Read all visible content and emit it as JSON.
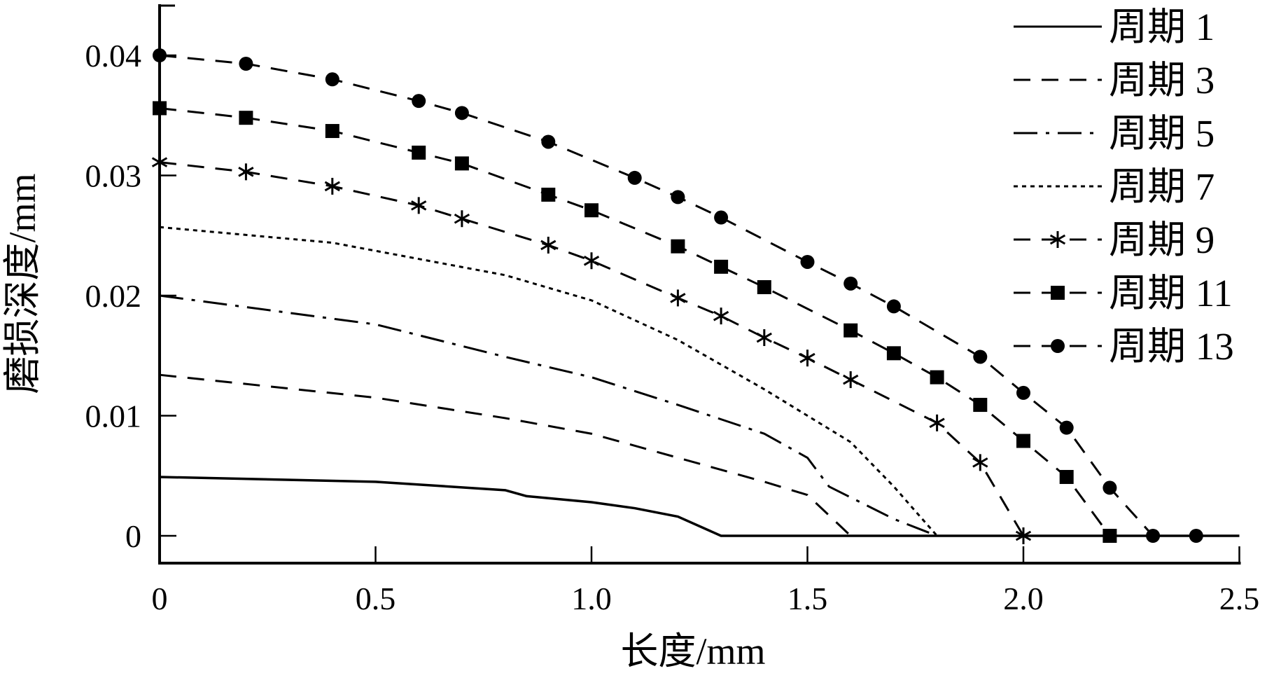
{
  "chart_data": {
    "type": "line",
    "title": "",
    "xlabel": "长度/mm",
    "ylabel": "磨损深度/mm",
    "xlim": [
      0,
      2.5
    ],
    "ylim": [
      0,
      0.045
    ],
    "xticks": [
      "0",
      "0.5",
      "1.0",
      "1.5",
      "2.0",
      "2.5"
    ],
    "xtick_values": [
      0,
      0.5,
      1.0,
      1.5,
      2.0,
      2.5
    ],
    "yticks": [
      "0",
      "0.01",
      "0.02",
      "0.03",
      "0.04"
    ],
    "ytick_values": [
      0,
      0.01,
      0.02,
      0.03,
      0.04
    ],
    "grid": false,
    "legend_position": "top-right",
    "series": [
      {
        "name": "周期 1",
        "style": "solid",
        "marker": "none",
        "x": [
          0,
          0.5,
          0.8,
          0.85,
          1.0,
          1.1,
          1.2,
          1.3,
          2.5
        ],
        "y": [
          0.0049,
          0.0045,
          0.0038,
          0.0033,
          0.0028,
          0.0023,
          0.0016,
          0,
          0
        ]
      },
      {
        "name": "周期 3",
        "style": "dashed",
        "marker": "none",
        "x": [
          0,
          0.5,
          0.8,
          1.0,
          1.2,
          1.4,
          1.5,
          1.6,
          2.5
        ],
        "y": [
          0.0134,
          0.0115,
          0.0098,
          0.0085,
          0.0065,
          0.0045,
          0.0034,
          0,
          0
        ]
      },
      {
        "name": "周期 5",
        "style": "dashdot",
        "marker": "none",
        "x": [
          0,
          0.5,
          0.8,
          1.0,
          1.2,
          1.4,
          1.5,
          1.55,
          1.7,
          1.8,
          2.5
        ],
        "y": [
          0.02,
          0.0176,
          0.0149,
          0.0132,
          0.0109,
          0.0085,
          0.0065,
          0.0041,
          0.0014,
          0,
          0
        ]
      },
      {
        "name": "周期 7",
        "style": "dotted",
        "marker": "none",
        "x": [
          0,
          0.4,
          0.8,
          1.0,
          1.2,
          1.4,
          1.6,
          1.7,
          1.8,
          2.5
        ],
        "y": [
          0.0257,
          0.0244,
          0.0217,
          0.0196,
          0.0163,
          0.0122,
          0.0078,
          0.0041,
          0,
          0
        ]
      },
      {
        "name": "周期 9",
        "style": "dashed",
        "marker": "star",
        "x": [
          0,
          0.2,
          0.4,
          0.6,
          0.7,
          0.9,
          1.0,
          1.2,
          1.3,
          1.4,
          1.5,
          1.6,
          1.8,
          1.9,
          2.0
        ],
        "y": [
          0.0311,
          0.0303,
          0.0291,
          0.0275,
          0.0264,
          0.0242,
          0.0229,
          0.0198,
          0.0183,
          0.0165,
          0.0148,
          0.013,
          0.0094,
          0.0061,
          0
        ]
      },
      {
        "name": "周期 11",
        "style": "dashed",
        "marker": "square",
        "x": [
          0,
          0.2,
          0.4,
          0.6,
          0.7,
          0.9,
          1.0,
          1.2,
          1.3,
          1.4,
          1.6,
          1.7,
          1.8,
          1.9,
          2.0,
          2.1,
          2.2
        ],
        "y": [
          0.0356,
          0.0348,
          0.0337,
          0.0319,
          0.031,
          0.0284,
          0.0271,
          0.0241,
          0.0224,
          0.0207,
          0.0171,
          0.0152,
          0.0132,
          0.0109,
          0.0079,
          0.0049,
          0
        ]
      },
      {
        "name": "周期 13",
        "style": "dashed",
        "marker": "circle",
        "x": [
          0,
          0.2,
          0.4,
          0.6,
          0.7,
          0.9,
          1.1,
          1.2,
          1.3,
          1.5,
          1.6,
          1.7,
          1.9,
          2.0,
          2.1,
          2.2,
          2.3,
          2.4
        ],
        "y": [
          0.04,
          0.0393,
          0.038,
          0.0362,
          0.0352,
          0.0328,
          0.0298,
          0.0282,
          0.0265,
          0.0228,
          0.021,
          0.0191,
          0.0149,
          0.0119,
          0.009,
          0.004,
          0,
          0
        ]
      }
    ]
  }
}
